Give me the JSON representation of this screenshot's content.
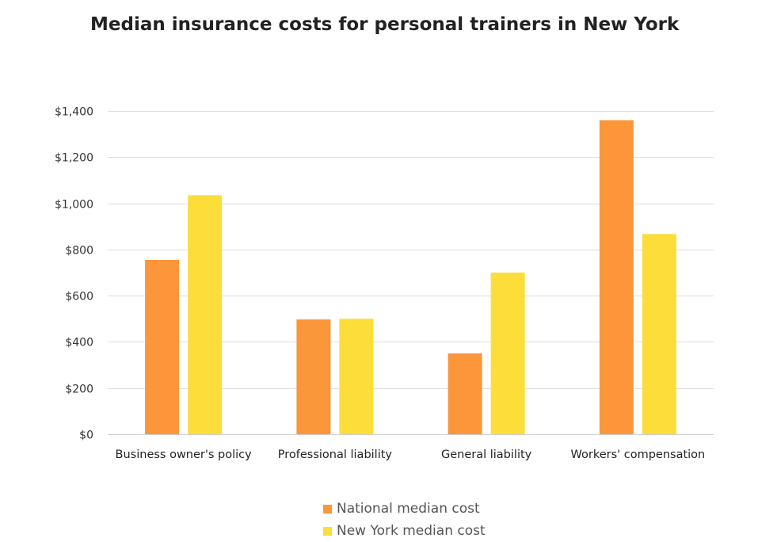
{
  "chart_data": {
    "type": "bar",
    "title": "Median insurance costs for personal trainers in New York",
    "categories": [
      "Business owner's policy",
      "Professional liability",
      "General liability",
      "Workers' compensation"
    ],
    "series": [
      {
        "name": "National median cost",
        "color": "#fb963a",
        "values": [
          755,
          497,
          350,
          1360
        ]
      },
      {
        "name": "New York median cost",
        "color": "#fddd3a",
        "values": [
          1035,
          500,
          700,
          867
        ]
      }
    ],
    "y_ticks": [
      {
        "value": 0,
        "label": "$0"
      },
      {
        "value": 200,
        "label": "$200"
      },
      {
        "value": 400,
        "label": "$400"
      },
      {
        "value": 600,
        "label": "$600"
      },
      {
        "value": 800,
        "label": "$800"
      },
      {
        "value": 1000,
        "label": "$1,000"
      },
      {
        "value": 1200,
        "label": "$1,200"
      },
      {
        "value": 1400,
        "label": "$1,400"
      }
    ],
    "ylim": [
      0,
      1400
    ],
    "xlabel": "",
    "ylabel": "",
    "grid": true,
    "legend_position": "bottom"
  }
}
